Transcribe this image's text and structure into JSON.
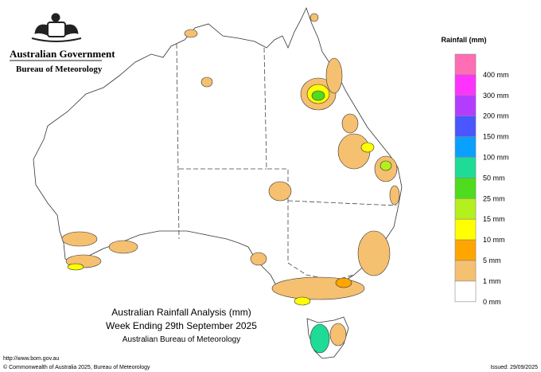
{
  "header": {
    "government": "Australian Government",
    "agency": "Bureau of Meteorology"
  },
  "legend": {
    "title": "Rainfall (mm)",
    "items": [
      {
        "label": "400 mm",
        "color": "#ff6eb4"
      },
      {
        "label": "300 mm",
        "color": "#ff33ff"
      },
      {
        "label": "200 mm",
        "color": "#b43cff"
      },
      {
        "label": "150 mm",
        "color": "#4a56ff"
      },
      {
        "label": "100 mm",
        "color": "#0aa0ff"
      },
      {
        "label": "50 mm",
        "color": "#1edc96"
      },
      {
        "label": "25 mm",
        "color": "#50dc1e"
      },
      {
        "label": "15 mm",
        "color": "#b4f01e"
      },
      {
        "label": "10 mm",
        "color": "#ffff00"
      },
      {
        "label": "5 mm",
        "color": "#ffa500"
      },
      {
        "label": "1 mm",
        "color": "#f5c070"
      },
      {
        "label": "0 mm",
        "color": "#ffffff"
      }
    ]
  },
  "title": {
    "main": "Australian Rainfall Analysis (mm)",
    "period": "Week Ending 29th September 2025",
    "source": "Australian Bureau of Meteorology"
  },
  "footer": {
    "url": "http://www.bom.gov.au",
    "copyright": "© Commonwealth of Australia 2025, Bureau of Meteorology",
    "issued": "Issued: 29/09/2025"
  }
}
